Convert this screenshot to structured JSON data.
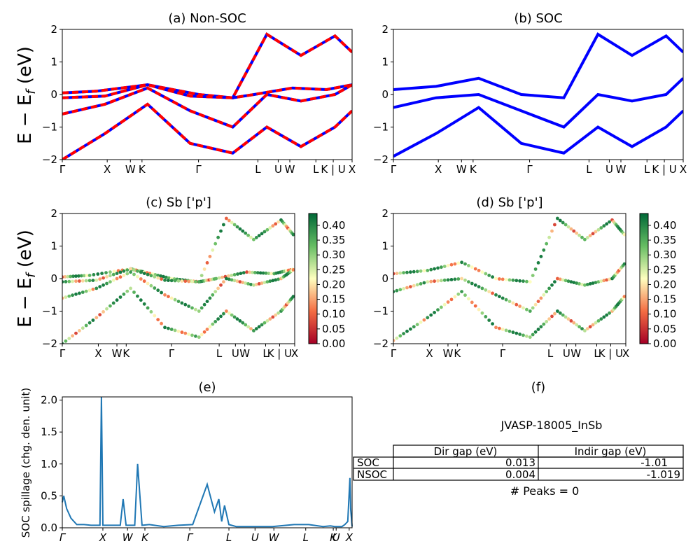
{
  "panels": {
    "a": {
      "title": "(a) Non-SOC",
      "ylabel": "E − E_f (eV)"
    },
    "b": {
      "title": "(b) SOC"
    },
    "c": {
      "title": "(c)  Sb ['p']",
      "ylabel": "E − E_f (eV)"
    },
    "d": {
      "title": "(d) Sb ['p']"
    },
    "e": {
      "title": "(e)",
      "ylabel": "SOC spillage (chg. den. unit)"
    },
    "f": {
      "title": "(f)"
    }
  },
  "kpath_labels": [
    "Γ",
    "X",
    "W",
    "K",
    "Γ",
    "L",
    "U",
    "W",
    "L",
    "K | U",
    "X"
  ],
  "kpath_labels_e": [
    "Γ",
    "X",
    "W",
    "K",
    "Γ",
    "L",
    "U",
    "W",
    "L",
    "K",
    "U",
    "X"
  ],
  "colors": {
    "nonsoc_line": "#ff0000",
    "soc_line": "#0000ff",
    "spillage_line": "#1f77b4",
    "cmap": "RdYlGn"
  },
  "colorbar": {
    "ticks": [
      "0.00",
      "0.05",
      "0.10",
      "0.15",
      "0.20",
      "0.25",
      "0.30",
      "0.35",
      "0.40"
    ]
  },
  "table": {
    "material": "JVASP-18005_InSb",
    "columns": [
      "Dir gap (eV)",
      "Indir gap (eV)"
    ],
    "rows": [
      {
        "label": "SOC",
        "dir": "0.013",
        "indir": "-1.01"
      },
      {
        "label": "NSOC",
        "dir": "0.004",
        "indir": "-1.019"
      }
    ],
    "peaks": "# Peaks = 0"
  },
  "chart_data": [
    {
      "type": "line",
      "title": "(a) Non-SOC",
      "ylabel": "E − E_f (eV)",
      "ylim": [
        -2,
        2
      ],
      "yticks": [
        -2,
        -1,
        0,
        1,
        2
      ],
      "x_ticks": [
        "Γ",
        "X",
        "W",
        "K",
        "Γ",
        "L",
        "U",
        "W",
        "L",
        "K | U",
        "X"
      ],
      "series": [
        {
          "values_x": [
            0,
            0.4,
            1.0,
            1.2,
            1.6,
            2.0,
            2.25,
            2.7,
            3.1,
            3.4
          ],
          "values_y": [
            0.05,
            0.1,
            0.3,
            0.2,
            0.0,
            -0.1,
            0.0,
            0.2,
            0.15,
            0.3
          ]
        },
        {
          "values_x": [
            0,
            0.5,
            1.0,
            1.5,
            2.0,
            2.4,
            2.8,
            3.2,
            3.4
          ],
          "values_y": [
            -0.1,
            -0.05,
            0.3,
            -0.05,
            -0.1,
            1.85,
            1.2,
            1.8,
            1.3
          ]
        },
        {
          "values_x": [
            0,
            0.5,
            1.0,
            1.5,
            2.0,
            2.4,
            2.8,
            3.2,
            3.4
          ],
          "values_y": [
            -0.6,
            -0.3,
            0.2,
            -0.5,
            -1.0,
            0.0,
            -0.2,
            0.0,
            0.3
          ]
        },
        {
          "values_x": [
            0,
            0.5,
            1.0,
            1.5,
            2.0,
            2.4,
            2.8,
            3.2,
            3.4
          ],
          "values_y": [
            -2.0,
            -1.2,
            -0.3,
            -1.5,
            -1.8,
            -1.0,
            -1.6,
            -1.0,
            -0.5
          ]
        }
      ]
    },
    {
      "type": "line",
      "title": "(b) SOC",
      "ylim": [
        -2,
        2
      ],
      "yticks": [
        -2,
        -1,
        0,
        1,
        2
      ],
      "x_ticks": [
        "Γ",
        "X",
        "W",
        "K",
        "Γ",
        "L",
        "U",
        "W",
        "L",
        "K | U",
        "X"
      ],
      "series": [
        {
          "values_x": [
            0,
            0.5,
            1.0,
            1.5,
            2.0,
            2.4,
            2.8,
            3.2,
            3.4
          ],
          "values_y": [
            0.15,
            0.25,
            0.5,
            0.0,
            -0.1,
            1.85,
            1.2,
            1.8,
            1.3
          ]
        },
        {
          "values_x": [
            0,
            0.5,
            1.0,
            1.5,
            2.0,
            2.4,
            2.8,
            3.2,
            3.4
          ],
          "values_y": [
            -0.4,
            -0.1,
            0.0,
            -0.5,
            -1.0,
            0.0,
            -0.2,
            0.0,
            0.5
          ]
        },
        {
          "values_x": [
            0,
            0.5,
            1.0,
            1.5,
            2.0,
            2.4,
            2.8,
            3.2,
            3.4
          ],
          "values_y": [
            -1.9,
            -1.2,
            -0.4,
            -1.5,
            -1.8,
            -1.0,
            -1.6,
            -1.0,
            -0.5
          ]
        }
      ]
    },
    {
      "type": "scatter",
      "title": "(c)  Sb ['p']",
      "ylabel": "E − E_f (eV)",
      "ylim": [
        -2,
        2
      ],
      "colorbar_range": [
        0.0,
        0.44
      ],
      "x_ticks": [
        "Γ",
        "X",
        "W",
        "K",
        "Γ",
        "L",
        "U",
        "W",
        "L",
        "K | U",
        "X"
      ]
    },
    {
      "type": "scatter",
      "title": "(d) Sb ['p']",
      "ylim": [
        -2,
        2
      ],
      "colorbar_range": [
        0.0,
        0.44
      ],
      "x_ticks": [
        "Γ",
        "X",
        "W",
        "K",
        "Γ",
        "L",
        "U",
        "W",
        "L",
        "K | U",
        "X"
      ]
    },
    {
      "type": "line",
      "title": "(e)",
      "ylabel": "SOC spillage (chg. den. unit)",
      "ylim": [
        0.0,
        2.05
      ],
      "yticks": [
        "0.0",
        "0.5",
        "1.0",
        "1.5",
        "2.0"
      ],
      "x_ticks": [
        "Γ",
        "X",
        "W",
        "K",
        "Γ",
        "L",
        "U",
        "W",
        "L",
        "K",
        "U",
        "X"
      ],
      "series": [
        {
          "values_x": [
            0.0,
            0.01,
            0.03,
            0.06,
            0.1,
            0.15,
            0.2,
            0.26,
            0.27,
            0.28,
            0.3,
            0.4,
            0.42,
            0.44,
            0.5,
            0.52,
            0.55,
            0.6,
            0.7,
            0.8,
            0.9,
            1.0,
            1.05,
            1.08,
            1.1,
            1.12,
            1.15,
            1.2,
            1.3,
            1.45,
            1.6,
            1.7,
            1.8,
            1.85,
            1.88,
            1.9,
            1.93,
            1.95,
            1.97,
            1.985,
            1.99,
            2.0
          ],
          "values_y": [
            0.4,
            0.5,
            0.3,
            0.15,
            0.05,
            0.05,
            0.04,
            0.04,
            2.05,
            0.04,
            0.04,
            0.04,
            0.45,
            0.04,
            0.04,
            1.0,
            0.04,
            0.05,
            0.02,
            0.04,
            0.05,
            0.68,
            0.25,
            0.45,
            0.1,
            0.35,
            0.05,
            0.02,
            0.02,
            0.02,
            0.05,
            0.05,
            0.02,
            0.03,
            0.02,
            0.02,
            0.02,
            0.05,
            0.1,
            0.78,
            0.3,
            0.02
          ]
        }
      ]
    }
  ]
}
